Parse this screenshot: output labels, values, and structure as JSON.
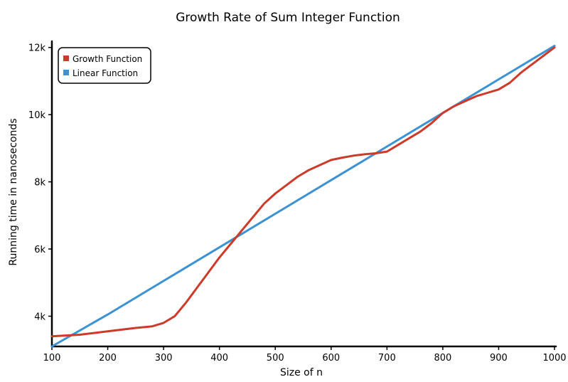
{
  "chart_data": {
    "type": "line",
    "title": "Growth Rate of Sum Integer Function",
    "xlabel": "Size of n",
    "ylabel": "Running time in nanoseconds",
    "xlim": [
      100,
      1000
    ],
    "ylim": [
      3100,
      12100
    ],
    "x_ticks": [
      100,
      200,
      300,
      400,
      500,
      600,
      700,
      800,
      900,
      1000
    ],
    "x_tick_labels": [
      "100",
      "200",
      "300",
      "400",
      "500",
      "600",
      "700",
      "800",
      "900",
      "1000"
    ],
    "y_ticks": [
      4000,
      6000,
      8000,
      10000,
      12000
    ],
    "y_tick_labels": [
      "4k",
      "6k",
      "8k",
      "10k",
      "12k"
    ],
    "grid": false,
    "legend": "top-left",
    "series": [
      {
        "name": "Growth Function",
        "color": "#cc3b2a",
        "x": [
          100,
          150,
          200,
          250,
          280,
          300,
          320,
          340,
          360,
          380,
          400,
          420,
          440,
          460,
          480,
          500,
          520,
          540,
          560,
          580,
          600,
          620,
          640,
          660,
          680,
          700,
          720,
          740,
          760,
          780,
          800,
          820,
          840,
          860,
          880,
          900,
          920,
          940,
          960,
          980,
          1000
        ],
        "y": [
          3400,
          3450,
          3550,
          3650,
          3700,
          3800,
          4000,
          4400,
          4850,
          5300,
          5750,
          6150,
          6550,
          6950,
          7350,
          7650,
          7900,
          8150,
          8350,
          8500,
          8650,
          8720,
          8780,
          8820,
          8850,
          8900,
          9100,
          9300,
          9500,
          9750,
          10050,
          10250,
          10400,
          10550,
          10650,
          10750,
          10950,
          11250,
          11500,
          11750,
          12000
        ]
      },
      {
        "name": "Linear Function",
        "color": "#3b92d4",
        "x": [
          100,
          200,
          300,
          400,
          500,
          600,
          700,
          800,
          900,
          1000
        ],
        "y": [
          3100,
          4050,
          5050,
          6050,
          7050,
          8050,
          9050,
          10050,
          11050,
          12050
        ]
      }
    ]
  }
}
